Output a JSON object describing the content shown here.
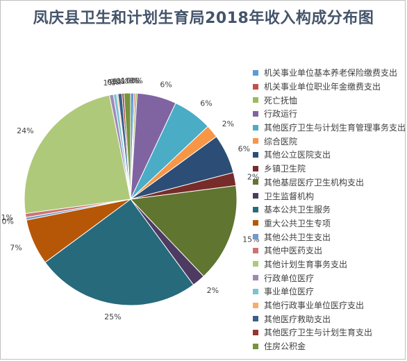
{
  "chart_data": {
    "type": "pie",
    "title": "凤庆县卫生和计划生育局2018年收入构成分布图",
    "legend_position": "right",
    "slices": [
      {
        "name": "机关事业单位基本养老保险缴费支出",
        "value": 0.5,
        "label": "0%",
        "color": "#5b9bd5"
      },
      {
        "name": "机关事业单位职业年金缴费支出",
        "value": 0.2,
        "label": "0%",
        "color": "#c0504d"
      },
      {
        "name": "死亡抚恤",
        "value": 0.3,
        "label": "0%",
        "color": "#9bbb59"
      },
      {
        "name": "行政运行",
        "value": 6,
        "label": "6%",
        "color": "#8064a2"
      },
      {
        "name": "其他医疗卫生与计划生育管理事务支出",
        "value": 6,
        "label": "6%",
        "color": "#4bacc6"
      },
      {
        "name": "综合医院",
        "value": 2,
        "label": "2%",
        "color": "#f79646"
      },
      {
        "name": "其他公立医院支出",
        "value": 6,
        "label": "6%",
        "color": "#2c4d75"
      },
      {
        "name": "乡镇卫生院",
        "value": 2,
        "label": "2%",
        "color": "#772c2a"
      },
      {
        "name": "其他基层医疗卫生机构支出",
        "value": 15,
        "label": "15%",
        "color": "#5f7530"
      },
      {
        "name": "卫生监督机构",
        "value": 2,
        "label": "2%",
        "color": "#4d3b62"
      },
      {
        "name": "基本公共卫生服务",
        "value": 25,
        "label": "25%",
        "color": "#276a7c"
      },
      {
        "name": "重大公共卫生专项",
        "value": 7,
        "label": "7%",
        "color": "#b65708"
      },
      {
        "name": "其他公共卫生支出",
        "value": 0.4,
        "label": "0%",
        "color": "#729aca"
      },
      {
        "name": "其他中医药支出",
        "value": 0.6,
        "label": "1%",
        "color": "#cd7371"
      },
      {
        "name": "其他计划生育事务支出",
        "value": 24,
        "label": "24%",
        "color": "#afc97a"
      },
      {
        "name": "行政单位医疗",
        "value": 0.6,
        "label": "1%",
        "color": "#a08ab5"
      },
      {
        "name": "事业单位医疗",
        "value": 0.5,
        "label": "0%",
        "color": "#7ac3d6"
      },
      {
        "name": "其他行政事业单位医疗支出",
        "value": 0.2,
        "label": "0%",
        "color": "#f9ab6b"
      },
      {
        "name": "其他医疗救助支出",
        "value": 0.6,
        "label": "1%",
        "color": "#3a5f8a"
      },
      {
        "name": "其他医疗卫生与计划生育支出",
        "value": 0.3,
        "label": "0%",
        "color": "#943634"
      },
      {
        "name": "住房公积金",
        "value": 1,
        "label": "1%",
        "color": "#77933c"
      }
    ]
  }
}
